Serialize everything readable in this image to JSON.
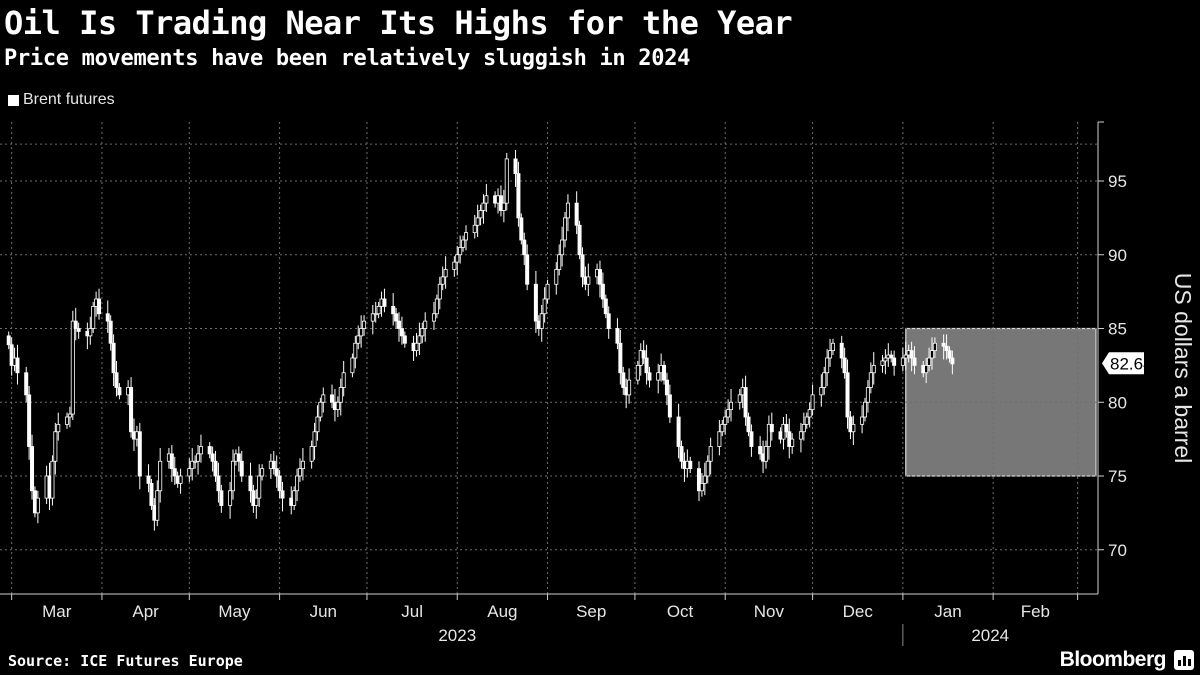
{
  "title": "Oil Is Trading Near Its Highs for the Year",
  "subtitle": "Price movements have been relatively sluggish in 2024",
  "source": "Source: ICE Futures Europe",
  "brand": "Bloomberg",
  "colors": {
    "background": "#000000",
    "series": "#ffffff",
    "highlight": "#8c8c8c",
    "grid": "#6e6e6e"
  },
  "chart_data": {
    "type": "candlestick",
    "legend": [
      "Brent futures"
    ],
    "legend_position": "top-left",
    "ylabel": "US dollars a barrel",
    "ylim": [
      67,
      99
    ],
    "y_ticks": [
      70,
      75,
      80,
      85,
      90,
      95
    ],
    "y_axis_side": "right",
    "grid": true,
    "x_tick_labels": [
      "Mar",
      "Apr",
      "May",
      "Jun",
      "Jul",
      "Aug",
      "Sep",
      "Oct",
      "Nov",
      "Dec",
      "Jan",
      "Feb"
    ],
    "year_labels": [
      "2023",
      "2024"
    ],
    "last_value": "82.64",
    "highlight": {
      "from": "2024-01-02",
      "to": "2024-03-05",
      "y_range": [
        75,
        85
      ]
    },
    "series": [
      {
        "name": "Brent futures",
        "x_start": "2023-02-28",
        "close": [
          83.9,
          82.5,
          83.0,
          82.0,
          80.5,
          77.0,
          74.0,
          72.5,
          73.5,
          75.0,
          73.5,
          76.0,
          78.0,
          78.5,
          79.0,
          79.2,
          85.5,
          85.0,
          84.8,
          84.5,
          85.0,
          86.5,
          87.0,
          86.0,
          85.5,
          84.0,
          82.0,
          81.0,
          80.5,
          81.0,
          78.0,
          77.5,
          78.0,
          75.0,
          74.5,
          73.0,
          72.0,
          74.0,
          76.0,
          76.5,
          75.5,
          75.0,
          74.5,
          75.0,
          75.5,
          76.0,
          76.0,
          76.5,
          77.0,
          76.5,
          76.0,
          75.0,
          74.0,
          73.0,
          74.0,
          76.0,
          76.5,
          76.0,
          75.0,
          74.0,
          73.0,
          73.5,
          75.0,
          75.5,
          76.0,
          75.5,
          75.0,
          74.0,
          73.5,
          73.0,
          74.0,
          75.0,
          75.5,
          76.0,
          77.0,
          78.0,
          79.0,
          80.0,
          80.5,
          80.0,
          79.5,
          80.0,
          81.0,
          82.0,
          83.0,
          84.0,
          84.5,
          85.0,
          85.5,
          86.0,
          86.0,
          86.5,
          87.0,
          86.5,
          86.0,
          85.5,
          85.0,
          84.5,
          84.0,
          83.5,
          84.0,
          84.5,
          85.0,
          85.5,
          86.0,
          87.0,
          88.0,
          88.5,
          89.0,
          89.5,
          90.0,
          90.5,
          91.0,
          91.5,
          92.0,
          92.5,
          93.0,
          93.5,
          94.0,
          93.5,
          94.0,
          93.0,
          93.5,
          96.5,
          95.5,
          92.5,
          91.0,
          90.0,
          88.0,
          85.5,
          85.0,
          86.0,
          87.0,
          88.0,
          89.0,
          90.0,
          91.0,
          92.5,
          93.5,
          92.0,
          90.0,
          88.5,
          88.0,
          88.5,
          89.0,
          88.0,
          87.0,
          86.0,
          85.0,
          84.0,
          82.0,
          81.0,
          80.5,
          81.5,
          82.5,
          83.5,
          83.0,
          82.0,
          81.5,
          82.0,
          82.5,
          81.5,
          80.5,
          79.0,
          77.0,
          76.0,
          75.5,
          76.0,
          75.5,
          74.0,
          74.5,
          75.0,
          76.0,
          77.0,
          78.0,
          78.5,
          79.0,
          79.5,
          80.0,
          80.5,
          81.0,
          79.0,
          78.0,
          77.0,
          76.5,
          76.0,
          77.0,
          78.5,
          78.0,
          77.5,
          78.5,
          78.0,
          77.0,
          77.5,
          78.0,
          78.5,
          79.0,
          79.5,
          80.5,
          81.0,
          82.0,
          83.0,
          83.5,
          84.0,
          83.0,
          82.0,
          79.0,
          78.0,
          78.5,
          79.0,
          80.0,
          81.0,
          82.0,
          82.5,
          82.8,
          83.0,
          83.2,
          83.0,
          82.5,
          83.0,
          83.2,
          83.5,
          83.0,
          82.5,
          82.0,
          82.5,
          83.0,
          83.5,
          84.0,
          83.8,
          83.5,
          83.0,
          82.6
        ]
      }
    ]
  }
}
